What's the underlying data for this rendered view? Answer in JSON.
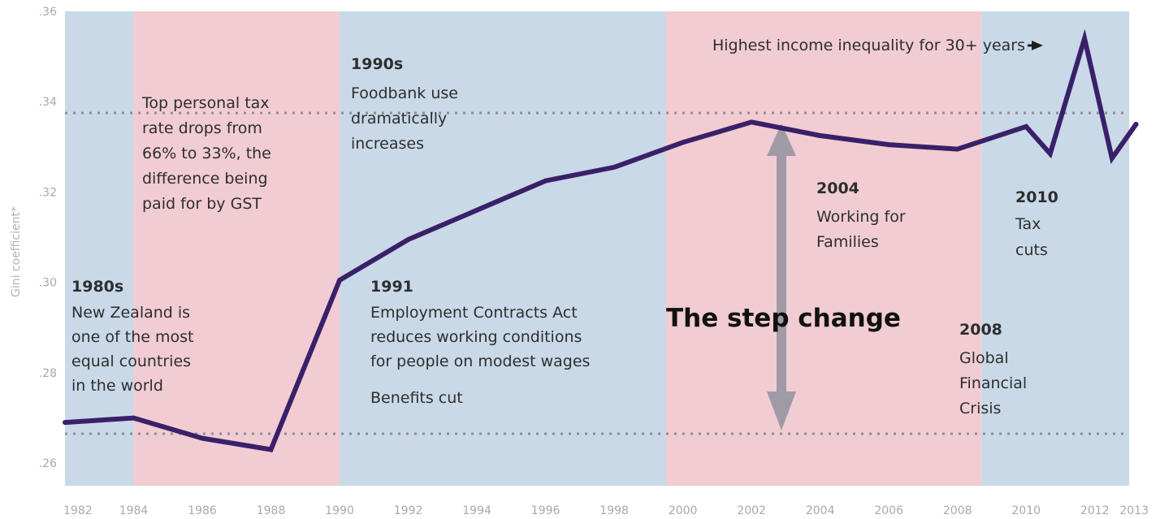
{
  "chart_data": {
    "type": "line",
    "xlabel": "",
    "ylabel": "Gini coefficient*",
    "xlim": [
      1982,
      2013
    ],
    "ylim": [
      0.255,
      0.36
    ],
    "x_ticks": [
      "1982",
      "1984",
      "1986",
      "1988",
      "1990",
      "1992",
      "1994",
      "1996",
      "1998",
      "2000",
      "2002",
      "2004",
      "2006",
      "2008",
      "2010",
      "2012",
      "2013"
    ],
    "y_ticks": [
      {
        "value": 0.26,
        "label": ".26"
      },
      {
        "value": 0.28,
        "label": ".28"
      },
      {
        "value": 0.3,
        "label": ".30"
      },
      {
        "value": 0.32,
        "label": ".32"
      },
      {
        "value": 0.34,
        "label": ".34"
      },
      {
        "value": 0.36,
        "label": ".36"
      }
    ],
    "series": [
      {
        "values": [
          [
            1982,
            0.269
          ],
          [
            1984,
            0.27
          ],
          [
            1986,
            0.2655
          ],
          [
            1988,
            0.263
          ],
          [
            1990,
            0.3005
          ],
          [
            1992,
            0.3095
          ],
          [
            1994,
            0.316
          ],
          [
            1996,
            0.3225
          ],
          [
            1998,
            0.3255
          ],
          [
            2000,
            0.331
          ],
          [
            2002,
            0.3355
          ],
          [
            2004,
            0.3325
          ],
          [
            2006,
            0.3305
          ],
          [
            2008,
            0.3295
          ],
          [
            2010,
            0.3345
          ],
          [
            2010.7,
            0.3285
          ],
          [
            2011.7,
            0.354
          ],
          [
            2012.5,
            0.3275
          ],
          [
            2013.2,
            0.335
          ]
        ]
      }
    ],
    "color_line": "#3a2068",
    "color_blue_band": "#c9d9e8",
    "color_pink_band": "#f1ccd3",
    "bands": [
      {
        "from": 1982,
        "to": 1984,
        "color": "blue"
      },
      {
        "from": 1984,
        "to": 1990,
        "color": "pink"
      },
      {
        "from": 1990,
        "to": 1999.5,
        "color": "blue"
      },
      {
        "from": 1999.5,
        "to": 2008.7,
        "color": "pink"
      },
      {
        "from": 2008.7,
        "to": 2013.2,
        "color": "blue"
      }
    ],
    "reference_lines": [
      0.2665,
      0.3375
    ],
    "annotations": {
      "y1980s_title": "1980s",
      "y1980s_l1": "New Zealand is",
      "y1980s_l2": "one of the most",
      "y1980s_l3": "equal countries",
      "y1980s_l4": "in the world",
      "tax_l1": "Top personal tax",
      "tax_l2": "rate drops from",
      "tax_l3": "66% to 33%, the",
      "tax_l4": "difference being",
      "tax_l5": "paid for by GST",
      "y1990s_title": "1990s",
      "y1990s_l1": "Foodbank use",
      "y1990s_l2": "dramatically",
      "y1990s_l3": "increases",
      "y1991_title": "1991",
      "y1991_l1": "Employment Contracts Act",
      "y1991_l2": "reduces working conditions",
      "y1991_l3": "for people on modest wages",
      "y1991_l4": "Benefits cut",
      "step_change": "The step change",
      "y2004_title": "2004",
      "y2004_l1": "Working for",
      "y2004_l2": "Families",
      "y2008_title": "2008",
      "y2008_l1": "Global",
      "y2008_l2": "Financial",
      "y2008_l3": "Crisis",
      "y2010_title": "2010",
      "y2010_l1": "Tax",
      "y2010_l2": "cuts",
      "highest": "Highest income inequality for 30+ years"
    }
  }
}
